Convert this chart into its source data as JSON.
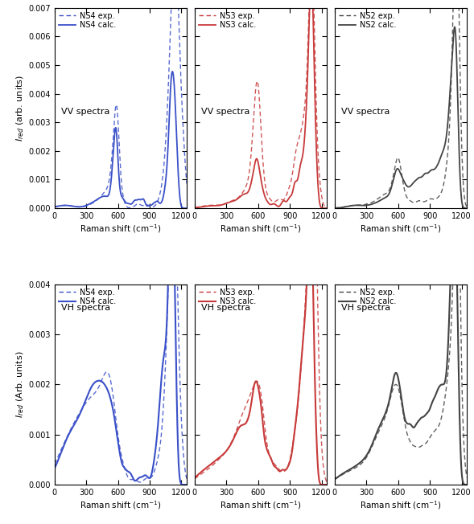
{
  "panels": [
    {
      "row": 0,
      "col": 0,
      "label": "VV spectra",
      "exp_label": "NS4 exp.",
      "calc_label": "NS4 calc.",
      "color": "#3a50c8",
      "lw_calc": 1.3,
      "lw_exp": 1.0,
      "ylim": [
        0,
        0.007
      ],
      "yticks": [
        0,
        0.001,
        0.002,
        0.003,
        0.004,
        0.005,
        0.006,
        0.007
      ],
      "show_yticks": true,
      "ylabel": "$I_{red}$ (arb. units)"
    },
    {
      "row": 0,
      "col": 1,
      "label": "VV spectra",
      "exp_label": "NS3 exp.",
      "calc_label": "NS3 calc.",
      "color": "#c83a3a",
      "lw_calc": 1.3,
      "lw_exp": 1.0,
      "ylim": [
        0,
        0.007
      ],
      "yticks": [
        0,
        0.001,
        0.002,
        0.003,
        0.004,
        0.005,
        0.006,
        0.007
      ],
      "show_yticks": false,
      "ylabel": ""
    },
    {
      "row": 0,
      "col": 2,
      "label": "VV spectra",
      "exp_label": "NS2 exp.",
      "calc_label": "NS2 calc.",
      "color": "#444444",
      "lw_calc": 1.3,
      "lw_exp": 1.0,
      "ylim": [
        0,
        0.007
      ],
      "yticks": [
        0,
        0.001,
        0.002,
        0.003,
        0.004,
        0.005,
        0.006,
        0.007
      ],
      "show_yticks": false,
      "ylabel": ""
    },
    {
      "row": 1,
      "col": 0,
      "label": "VH spectra",
      "exp_label": "NS4 exp.",
      "calc_label": "NS4 calc.",
      "color": "#3a50c8",
      "lw_calc": 1.5,
      "lw_exp": 1.0,
      "ylim": [
        0,
        0.004
      ],
      "yticks": [
        0,
        0.001,
        0.002,
        0.003,
        0.004
      ],
      "show_yticks": true,
      "ylabel": "$I_{red}$ (Arb. units)"
    },
    {
      "row": 1,
      "col": 1,
      "label": "VH spectra",
      "exp_label": "NS3 exp.",
      "calc_label": "NS3 calc.",
      "color": "#c83a3a",
      "lw_calc": 1.5,
      "lw_exp": 1.0,
      "ylim": [
        0,
        0.004
      ],
      "yticks": [
        0,
        0.001,
        0.002,
        0.003,
        0.004
      ],
      "show_yticks": false,
      "ylabel": ""
    },
    {
      "row": 1,
      "col": 2,
      "label": "VH spectra",
      "exp_label": "NS2 exp.",
      "calc_label": "NS2 calc.",
      "color": "#444444",
      "lw_calc": 1.5,
      "lw_exp": 1.0,
      "ylim": [
        0,
        0.004
      ],
      "yticks": [
        0,
        0.001,
        0.002,
        0.003,
        0.004
      ],
      "show_yticks": false,
      "ylabel": ""
    }
  ],
  "xlim": [
    0,
    1250
  ],
  "xticks": [
    0,
    300,
    600,
    900,
    1200
  ],
  "xlabel": "Raman shift (cm$^{-1}$)",
  "bg_color": "#ffffff"
}
